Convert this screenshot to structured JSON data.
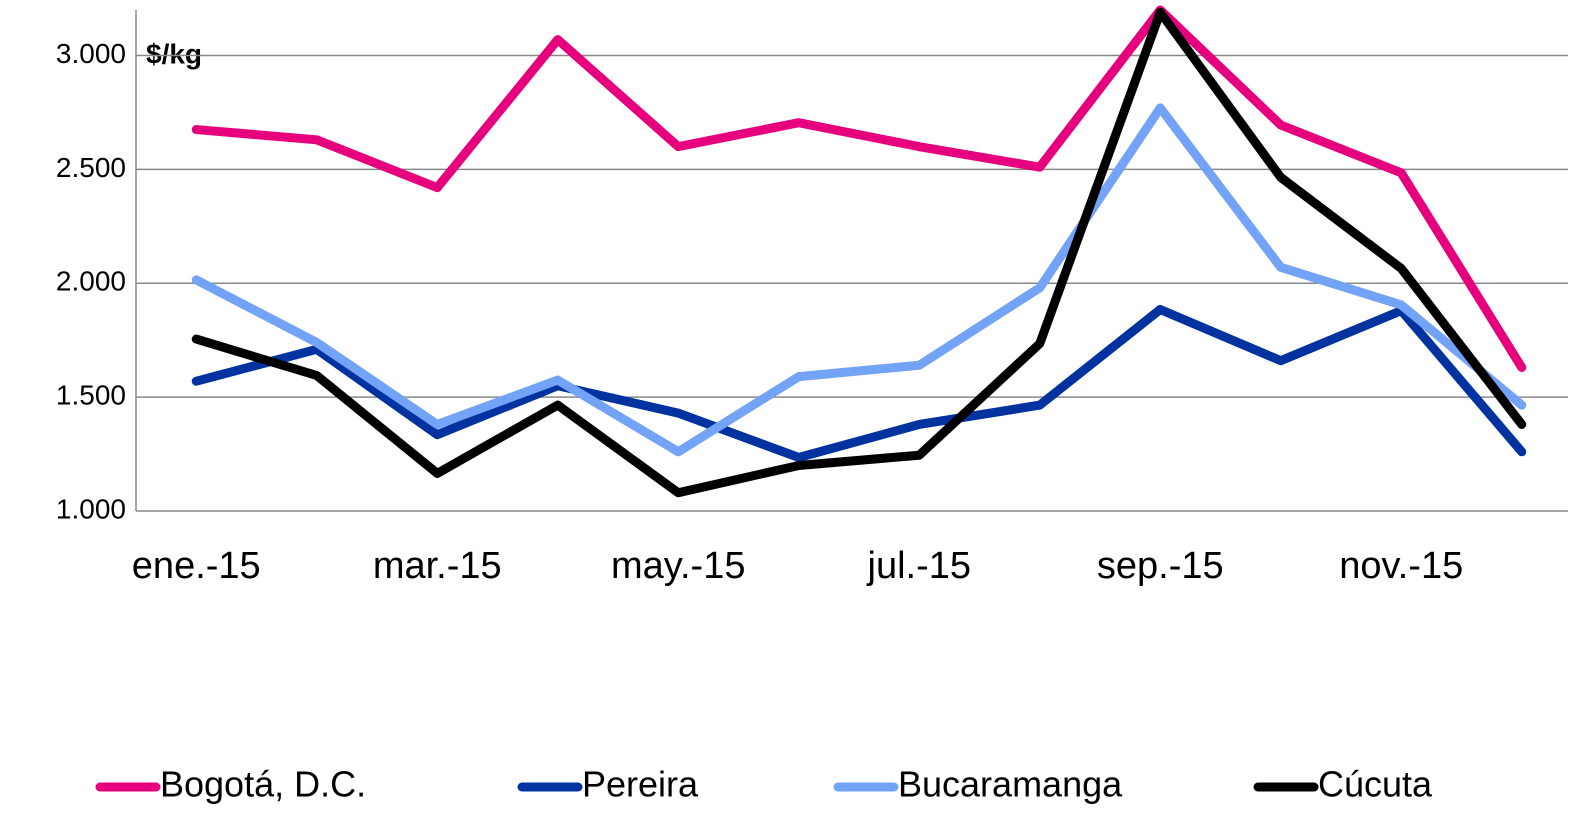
{
  "chart_data": {
    "type": "line",
    "y_label": "$/kg",
    "categories": [
      "ene.-15",
      null,
      "mar.-15",
      null,
      "may.-15",
      null,
      "jul.-15",
      null,
      "sep.-15",
      null,
      "nov.-15",
      null
    ],
    "series": [
      {
        "name": "Bogotá, D.C.",
        "color": "#e6007e",
        "values": [
          2675,
          2630,
          2420,
          3070,
          2600,
          2705,
          2600,
          2510,
          3200,
          2695,
          2485,
          1630
        ]
      },
      {
        "name": "Pereira",
        "color": "#0033a0",
        "values": [
          1570,
          1710,
          1335,
          1550,
          1430,
          1235,
          1380,
          1465,
          1885,
          1660,
          1880,
          1260
        ]
      },
      {
        "name": "Bucaramanga",
        "color": "#72a3f7",
        "values": [
          2015,
          1740,
          1380,
          1575,
          1260,
          1590,
          1640,
          1980,
          2770,
          2070,
          1905,
          1465
        ]
      },
      {
        "name": "Cúcuta",
        "color": "#000000",
        "values": [
          1755,
          1595,
          1165,
          1465,
          1080,
          1200,
          1245,
          1735,
          3190,
          2465,
          2065,
          1380
        ]
      }
    ],
    "ylim": [
      1000,
      3200
    ],
    "yticks": [
      {
        "value": 1000,
        "label": "1.000"
      },
      {
        "value": 1500,
        "label": "1.500"
      },
      {
        "value": 2000,
        "label": "2.000"
      },
      {
        "value": 2500,
        "label": "2.500"
      },
      {
        "value": 3000,
        "label": "3.000"
      }
    ],
    "grid": true
  }
}
